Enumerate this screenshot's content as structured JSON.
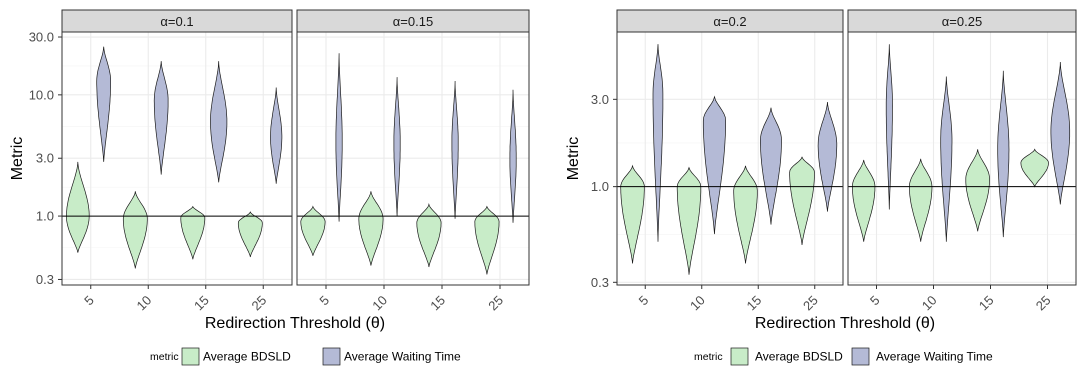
{
  "colors": {
    "bdsld": "#c8ecc8",
    "waiting": "#b4bad6",
    "outline": "#1a1a1a",
    "strip": "#d9d9d9",
    "grid_major": "#ebebeb",
    "grid_minor": "#f5f5f5",
    "panel_border": "#333333",
    "ref_line": "#000000"
  },
  "chart_data": [
    {
      "type": "violin",
      "scale": "log10",
      "ylabel": "Metric",
      "xlabel": "Redirection Threshold (θ)",
      "ylim": [
        0.27,
        33
      ],
      "yticks": [
        0.3,
        1.0,
        3.0,
        10.0,
        30.0
      ],
      "ytick_labels": [
        "0.3",
        "1.0",
        "3.0",
        "10.0",
        "30.0"
      ],
      "reference_line": 1.0,
      "categories": [
        "5",
        "10",
        "15",
        "25"
      ],
      "legend": {
        "title": "metric",
        "items": [
          "Average BDSLD",
          "Average Waiting Time"
        ]
      },
      "facets": [
        {
          "label": "α=0.1",
          "series": [
            {
              "name": "Average BDSLD",
              "metric": "bdsld",
              "violins": [
                {
                  "min": 0.5,
                  "max": 2.8,
                  "mode": 1.0,
                  "width": 0.9
                },
                {
                  "min": 0.37,
                  "max": 1.6,
                  "mode": 0.95,
                  "width": 0.95
                },
                {
                  "min": 0.44,
                  "max": 1.2,
                  "mode": 0.97,
                  "width": 0.95
                },
                {
                  "min": 0.46,
                  "max": 1.08,
                  "mode": 0.88,
                  "width": 0.95
                }
              ]
            },
            {
              "name": "Average Waiting Time",
              "metric": "waiting",
              "violins": [
                {
                  "min": 2.8,
                  "max": 25,
                  "mode": 13,
                  "width": 0.55
                },
                {
                  "min": 2.2,
                  "max": 19,
                  "mode": 9,
                  "width": 0.55
                },
                {
                  "min": 1.9,
                  "max": 19,
                  "mode": 6,
                  "width": 0.65
                },
                {
                  "min": 1.85,
                  "max": 11.5,
                  "mode": 4.5,
                  "width": 0.45
                }
              ]
            }
          ]
        },
        {
          "label": "α=0.15",
          "series": [
            {
              "name": "Average BDSLD",
              "metric": "bdsld",
              "violins": [
                {
                  "min": 0.47,
                  "max": 1.2,
                  "mode": 0.9,
                  "width": 0.95
                },
                {
                  "min": 0.39,
                  "max": 1.6,
                  "mode": 0.95,
                  "width": 0.95
                },
                {
                  "min": 0.38,
                  "max": 1.25,
                  "mode": 0.88,
                  "width": 0.95
                },
                {
                  "min": 0.33,
                  "max": 1.2,
                  "mode": 0.9,
                  "width": 0.95
                }
              ]
            },
            {
              "name": "Average Waiting Time",
              "metric": "waiting",
              "violins": [
                {
                  "min": 0.9,
                  "max": 22,
                  "mode": 4,
                  "width": 0.25
                },
                {
                  "min": 1.0,
                  "max": 14,
                  "mode": 4,
                  "width": 0.25
                },
                {
                  "min": 0.95,
                  "max": 13,
                  "mode": 4,
                  "width": 0.25
                },
                {
                  "min": 0.88,
                  "max": 11,
                  "mode": 3,
                  "width": 0.25
                }
              ]
            }
          ]
        },
        {
          "label": "α=0.2",
          "scale": "log10",
          "ylim": [
            0.29,
            7.0
          ],
          "yticks": [
            0.3,
            1.0,
            3.0
          ],
          "ytick_labels": [
            "0.3",
            "1.0",
            "3.0"
          ],
          "series": [
            {
              "name": "Average BDSLD",
              "metric": "bdsld",
              "violins": [
                {
                  "min": 0.38,
                  "max": 1.3,
                  "mode": 1.0,
                  "width": 0.95
                },
                {
                  "min": 0.33,
                  "max": 1.27,
                  "mode": 1.0,
                  "width": 0.95
                },
                {
                  "min": 0.38,
                  "max": 1.3,
                  "mode": 0.95,
                  "width": 0.95
                },
                {
                  "min": 0.48,
                  "max": 1.45,
                  "mode": 1.2,
                  "width": 1.0
                }
              ]
            },
            {
              "name": "Average Waiting Time",
              "metric": "waiting",
              "violins": [
                {
                  "min": 0.5,
                  "max": 6.0,
                  "mode": 3.2,
                  "width": 0.4
                },
                {
                  "min": 0.55,
                  "max": 3.1,
                  "mode": 2.3,
                  "width": 0.9
                },
                {
                  "min": 0.62,
                  "max": 2.7,
                  "mode": 1.8,
                  "width": 0.85
                },
                {
                  "min": 0.73,
                  "max": 2.9,
                  "mode": 1.7,
                  "width": 0.75
                }
              ]
            }
          ]
        },
        {
          "label": "α=0.25",
          "scale": "log10",
          "ylim": [
            0.29,
            7.0
          ],
          "yticks": [
            0.3,
            1.0,
            3.0
          ],
          "ytick_labels": [
            "0.3",
            "1.0",
            "3.0"
          ],
          "series": [
            {
              "name": "Average BDSLD",
              "metric": "bdsld",
              "violins": [
                {
                  "min": 0.5,
                  "max": 1.4,
                  "mode": 1.0,
                  "width": 0.9
                },
                {
                  "min": 0.5,
                  "max": 1.42,
                  "mode": 1.0,
                  "width": 0.9
                },
                {
                  "min": 0.57,
                  "max": 1.6,
                  "mode": 1.1,
                  "width": 0.95
                },
                {
                  "min": 1.0,
                  "max": 1.6,
                  "mode": 1.35,
                  "width": 1.1
                }
              ]
            },
            {
              "name": "Average Waiting Time",
              "metric": "waiting",
              "violins": [
                {
                  "min": 0.75,
                  "max": 6.0,
                  "mode": 2.8,
                  "width": 0.25
                },
                {
                  "min": 0.5,
                  "max": 4.0,
                  "mode": 1.8,
                  "width": 0.45
                },
                {
                  "min": 0.53,
                  "max": 4.3,
                  "mode": 1.6,
                  "width": 0.45
                },
                {
                  "min": 0.8,
                  "max": 4.8,
                  "mode": 2.0,
                  "width": 0.75
                }
              ]
            }
          ]
        }
      ]
    }
  ]
}
